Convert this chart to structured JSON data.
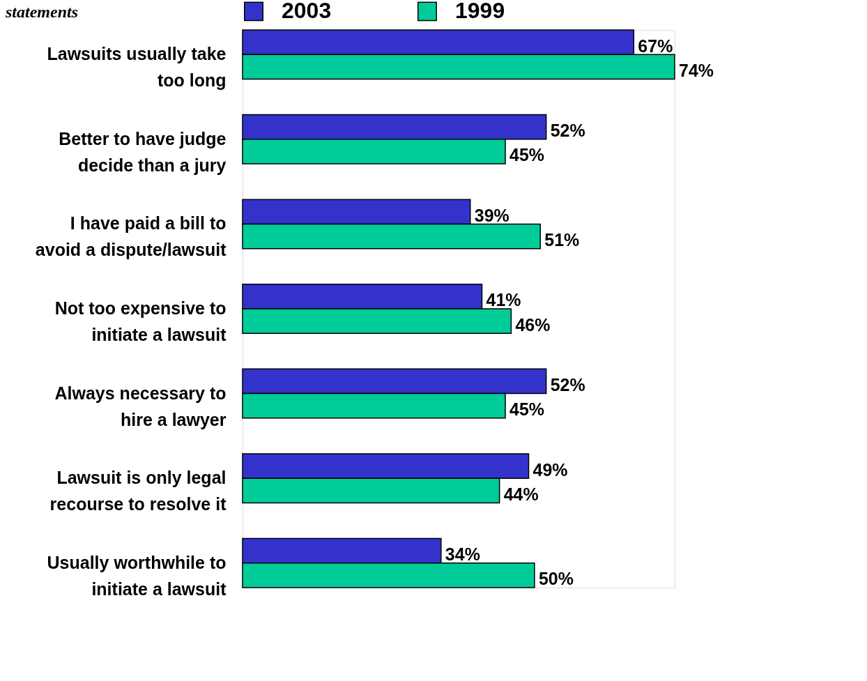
{
  "chart_data": {
    "type": "bar",
    "orientation": "horizontal",
    "title": "statements",
    "categories": [
      "Lawsuits usually take\ntoo long",
      "Better to have judge\ndecide than a jury",
      "I have paid a bill to\navoid a dispute/lawsuit",
      "Not too expensive to\ninitiate a lawsuit",
      "Always necessary to\nhire a lawyer",
      "Lawsuit is only legal\nrecourse to resolve it",
      "Usually worthwhile to\ninitiate a lawsuit"
    ],
    "series": [
      {
        "name": "2003",
        "color": "#3333cc",
        "values": [
          67,
          52,
          39,
          41,
          52,
          49,
          34
        ],
        "value_labels": [
          "67%",
          "52%",
          "39%",
          "41%",
          "52%",
          "49%",
          "34%"
        ]
      },
      {
        "name": "1999",
        "color": "#00cc99",
        "values": [
          74,
          45,
          51,
          46,
          45,
          44,
          50
        ],
        "value_labels": [
          "74%",
          "45%",
          "51%",
          "46%",
          "45%",
          "44%",
          "50%"
        ]
      }
    ],
    "legend": "top",
    "grid": false
  }
}
